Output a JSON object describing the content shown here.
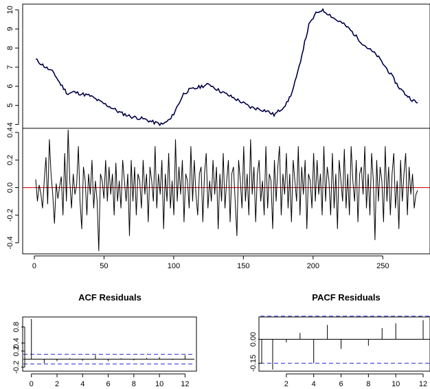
{
  "chart_data": [
    {
      "type": "line",
      "panel": "series",
      "title": "",
      "xlabel": "",
      "ylabel": "",
      "xlim": [
        1,
        275
      ],
      "ylim": [
        3.8,
        10.3
      ],
      "x_ticks": [
        0,
        50,
        100,
        150,
        200,
        250
      ],
      "y_ticks": [
        4,
        5,
        6,
        7,
        8,
        9,
        10
      ],
      "y_tick_labels": [
        "4",
        "5",
        "6",
        "7",
        "8",
        "9",
        "10"
      ],
      "series": [
        {
          "color": "#000000",
          "knots_x": [
            1,
            8,
            14,
            18,
            24,
            28,
            34,
            40,
            47,
            55,
            62,
            70,
            78,
            86,
            92,
            98,
            103,
            107,
            111,
            116,
            120,
            126,
            132,
            140,
            148,
            155,
            162,
            167,
            172,
            177,
            181,
            185,
            189,
            193,
            197,
            202,
            206,
            211,
            216,
            221,
            226,
            231,
            236,
            241,
            246,
            251,
            256,
            261,
            266,
            271,
            275
          ],
          "knots_y": [
            7.4,
            7.0,
            6.7,
            6.2,
            5.6,
            5.7,
            5.6,
            5.5,
            5.2,
            4.9,
            4.6,
            4.4,
            4.3,
            4.1,
            4.0,
            4.3,
            5.0,
            5.6,
            5.8,
            5.9,
            6.0,
            6.1,
            5.8,
            5.5,
            5.2,
            4.9,
            4.8,
            4.7,
            4.5,
            4.8,
            5.1,
            5.7,
            6.7,
            8.0,
            9.2,
            9.8,
            10.0,
            9.8,
            9.5,
            9.3,
            9.0,
            8.6,
            8.2,
            7.9,
            7.6,
            7.1,
            6.6,
            6.0,
            5.6,
            5.3,
            5.1
          ]
        },
        {
          "color": "#0000cc",
          "knots_x": [
            1,
            8,
            14,
            18,
            24,
            28,
            34,
            40,
            47,
            55,
            62,
            70,
            78,
            86,
            92,
            98,
            103,
            107,
            111,
            116,
            120,
            126,
            132,
            140,
            148,
            155,
            162,
            167,
            172,
            177,
            181,
            185,
            189,
            193,
            197,
            202,
            206,
            211,
            216,
            221,
            226,
            231,
            236,
            241,
            246,
            251,
            256,
            261,
            266,
            271,
            275
          ],
          "knots_y": [
            7.4,
            7.0,
            6.7,
            6.2,
            5.6,
            5.7,
            5.6,
            5.5,
            5.2,
            4.9,
            4.6,
            4.4,
            4.3,
            4.1,
            4.0,
            4.3,
            5.0,
            5.6,
            5.8,
            5.9,
            6.0,
            6.1,
            5.8,
            5.5,
            5.2,
            4.9,
            4.8,
            4.7,
            4.5,
            4.8,
            5.1,
            5.7,
            6.7,
            8.0,
            9.2,
            9.8,
            10.0,
            9.8,
            9.5,
            9.3,
            9.0,
            8.6,
            8.2,
            7.9,
            7.6,
            7.1,
            6.6,
            6.0,
            5.6,
            5.3,
            5.1
          ]
        }
      ]
    },
    {
      "type": "line",
      "panel": "residuals",
      "title": "",
      "xlabel": "",
      "ylabel": "",
      "xlim": [
        1,
        275
      ],
      "ylim": [
        -0.48,
        0.43
      ],
      "x_ticks": [
        0,
        50,
        100,
        150,
        200,
        250
      ],
      "y_ticks": [
        -0.4,
        -0.2,
        0.0,
        0.2,
        0.4
      ],
      "y_tick_labels": [
        "-0.4",
        "-0.2",
        "0.0",
        "0.2",
        "0.4"
      ],
      "reference_line": {
        "y": 0,
        "color": "#cc0000"
      },
      "series": [
        {
          "color": "#000000",
          "x_start": 1,
          "values": [
            0.06,
            -0.1,
            0.02,
            -0.04,
            -0.15,
            0.05,
            0.22,
            -0.12,
            0.35,
            0.1,
            -0.05,
            -0.26,
            0.03,
            -0.08,
            0.01,
            0.08,
            -0.2,
            0.25,
            -0.1,
            0.42,
            0.05,
            -0.15,
            0.1,
            -0.05,
            0.02,
            0.3,
            -0.1,
            -0.3,
            0.15,
            0.05,
            -0.2,
            0.1,
            -0.05,
            0.2,
            -0.15,
            0.05,
            -0.1,
            -0.46,
            0.1,
            0.05,
            -0.08,
            0.2,
            -0.1,
            0.15,
            -0.05,
            0.1,
            -0.2,
            0.18,
            -0.1,
            0.05,
            -0.15,
            0.2,
            0.05,
            -0.1,
            0.1,
            -0.35,
            0.2,
            -0.1,
            0.15,
            -0.2,
            0.1,
            0.05,
            -0.15,
            0.2,
            -0.05,
            0.1,
            -0.25,
            0.15,
            0.05,
            -0.1,
            0.3,
            -0.15,
            0.1,
            -0.05,
            0.2,
            -0.3,
            0.1,
            -0.1,
            0.25,
            -0.15,
            0.05,
            -0.2,
            0.35,
            -0.1,
            0.15,
            -0.05,
            0.2,
            -0.25,
            0.1,
            0.05,
            -0.15,
            0.3,
            -0.1,
            0.2,
            -0.05,
            -0.2,
            0.1,
            0.15,
            -0.25,
            0.1,
            0.25,
            -0.15,
            0.05,
            -0.1,
            0.2,
            -0.05,
            0.15,
            -0.3,
            0.1,
            -0.1,
            0.25,
            -0.15,
            0.05,
            0.2,
            -0.25,
            0.1,
            0.15,
            -0.1,
            -0.35,
            0.2,
            0.05,
            -0.15,
            0.3,
            -0.1,
            0.1,
            -0.2,
            0.35,
            -0.05,
            0.15,
            -0.25,
            0.1,
            0.2,
            -0.1,
            0.05,
            -0.2,
            0.3,
            -0.15,
            0.1,
            0.05,
            -0.3,
            0.2,
            -0.1,
            0.15,
            0.3,
            -0.2,
            0.1,
            -0.05,
            0.25,
            -0.15,
            0.1,
            -0.25,
            0.2,
            0.05,
            -0.1,
            0.3,
            -0.2,
            0.15,
            -0.05,
            0.2,
            -0.3,
            0.1,
            0.05,
            -0.15,
            0.25,
            -0.1,
            0.2,
            -0.05,
            0.1,
            -0.2,
            0.3,
            -0.1,
            0.15,
            0.05,
            -0.2,
            0.25,
            -0.15,
            0.1,
            -0.3,
            0.2,
            0.05,
            -0.1,
            0.28,
            -0.15,
            0.1,
            -0.2,
            0.3,
            0.05,
            -0.1,
            0.2,
            -0.25,
            0.1,
            0.15,
            -0.05,
            0.3,
            -0.15,
            0.1,
            -0.2,
            0.25,
            0.05,
            -0.38,
            0.2,
            -0.1,
            0.15,
            0.05,
            -0.25,
            0.3,
            -0.1,
            0.15,
            -0.2,
            0.1,
            0.25,
            -0.15,
            0.05,
            -0.3,
            0.2,
            -0.1,
            0.1,
            0.25,
            -0.2,
            0.15,
            -0.05,
            0.1,
            -0.15,
            -0.05,
            -0.02
          ]
        }
      ]
    },
    {
      "type": "bar",
      "panel": "acf",
      "title": "ACF Residuals",
      "xlim": [
        -0.2,
        12.3
      ],
      "ylim": [
        -0.3,
        1.05
      ],
      "x_ticks": [
        0,
        2,
        4,
        6,
        8,
        10,
        12
      ],
      "y_ticks": [
        -0.2,
        0.2,
        0.4,
        0.8
      ],
      "y_tick_labels": [
        "-0.2",
        "0.2",
        "0.4",
        "0.8"
      ],
      "lags": [
        0,
        1,
        2,
        3,
        4,
        5,
        6,
        7,
        8,
        9,
        10,
        11,
        12
      ],
      "values": [
        1.0,
        -0.1,
        -0.05,
        0.02,
        -0.04,
        0.1,
        -0.05,
        0.02,
        -0.03,
        0.03,
        0.05,
        -0.02,
        0.1
      ],
      "confidence": [
        -0.12,
        0.12
      ],
      "confidence_color": "#2b2bd9"
    },
    {
      "type": "bar",
      "panel": "pacf",
      "title": "PACF Residuals",
      "xlim": [
        0.5,
        12.2
      ],
      "ylim": [
        -0.2,
        0.14
      ],
      "x_ticks": [
        2,
        4,
        6,
        8,
        10,
        12
      ],
      "y_ticks": [
        -0.15,
        0.0
      ],
      "y_tick_labels": [
        "-0.15",
        "0.00"
      ],
      "lags": [
        1,
        2,
        3,
        4,
        5,
        6,
        7,
        8,
        9,
        10,
        11,
        12
      ],
      "values": [
        -0.19,
        -0.02,
        0.04,
        -0.15,
        0.09,
        -0.06,
        0.0,
        -0.04,
        0.07,
        0.1,
        0.0,
        0.12
      ],
      "confidence": [
        -0.15,
        0.145
      ],
      "confidence_color": "#2b2bd9"
    }
  ]
}
